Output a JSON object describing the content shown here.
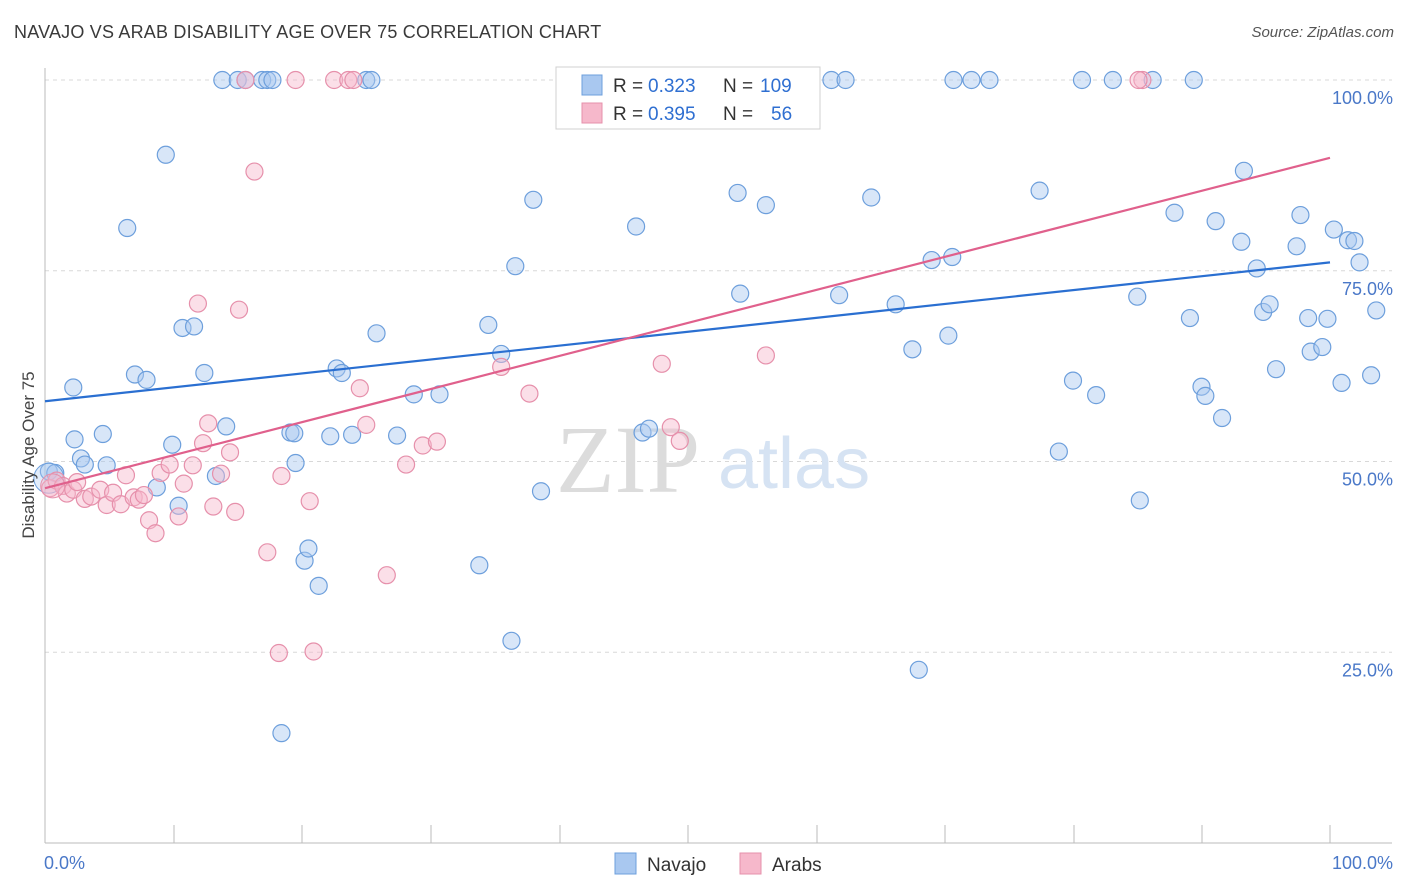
{
  "header": {
    "title": "NAVAJO VS ARAB DISABILITY AGE OVER 75 CORRELATION CHART",
    "source": "Source: ZipAtlas.com"
  },
  "watermark": {
    "zip": "ZIP",
    "atlas": "atlas"
  },
  "colors": {
    "navajo_fill": "#a9c8f0",
    "navajo_stroke": "#6d9fdc",
    "navajo_line": "#2a6fd1",
    "arabs_fill": "#f6b8cb",
    "arabs_stroke": "#e690ab",
    "arabs_line": "#e0608c",
    "tick_label": "#4a78c8",
    "grid": "#d8d8d8"
  },
  "legend": {
    "rows": [
      {
        "r_label": "R =",
        "r_value": "0.323",
        "n_label": "N =",
        "n_value": "109"
      },
      {
        "r_label": "R =",
        "r_value": "0.395",
        "n_label": "N =",
        "n_value": "56"
      }
    ]
  },
  "chart_data": {
    "type": "scatter",
    "title": "NAVAJO VS ARAB DISABILITY AGE OVER 75 CORRELATION CHART",
    "xlabel": "",
    "ylabel": "Disability Age Over 75",
    "xlim": [
      0,
      100
    ],
    "ylim": [
      0,
      105
    ],
    "x_tick_labels": [
      "0.0%",
      "100.0%"
    ],
    "y_ticks": [
      25,
      50,
      75,
      100
    ],
    "y_tick_labels": [
      "25.0%",
      "50.0%",
      "75.0%",
      "100.0%"
    ],
    "grid": true,
    "legend_position": "top-center",
    "series": [
      {
        "name": "Navajo",
        "r": 0.323,
        "n": 109,
        "trend": {
          "x": [
            0,
            100
          ],
          "y": [
            57.9,
            76.1
          ]
        },
        "points": [
          [
            0.3,
            48.7
          ],
          [
            0.8,
            48.5
          ],
          [
            2.2,
            59.7
          ],
          [
            2.3,
            52.9
          ],
          [
            2.8,
            50.4
          ],
          [
            3.1,
            49.6
          ],
          [
            4.5,
            53.6
          ],
          [
            4.8,
            49.5
          ],
          [
            6.4,
            80.6
          ],
          [
            7.0,
            61.4
          ],
          [
            7.9,
            60.7
          ],
          [
            8.7,
            46.6
          ],
          [
            9.4,
            90.2
          ],
          [
            9.9,
            52.2
          ],
          [
            10.4,
            44.2
          ],
          [
            10.7,
            67.5
          ],
          [
            11.6,
            67.7
          ],
          [
            12.4,
            61.6
          ],
          [
            13.3,
            48.1
          ],
          [
            14.1,
            54.6
          ],
          [
            13.8,
            100
          ],
          [
            15.0,
            100
          ],
          [
            15.6,
            100
          ],
          [
            16.9,
            100
          ],
          [
            17.3,
            100
          ],
          [
            17.7,
            100
          ],
          [
            18.4,
            14.4
          ],
          [
            19.1,
            53.8
          ],
          [
            19.4,
            53.7
          ],
          [
            19.5,
            49.8
          ],
          [
            20.2,
            37.0
          ],
          [
            20.5,
            38.6
          ],
          [
            21.3,
            33.7
          ],
          [
            22.2,
            53.3
          ],
          [
            22.7,
            62.2
          ],
          [
            23.1,
            61.6
          ],
          [
            23.9,
            53.5
          ],
          [
            25.0,
            100
          ],
          [
            25.4,
            100
          ],
          [
            25.8,
            66.8
          ],
          [
            27.4,
            53.4
          ],
          [
            28.7,
            58.8
          ],
          [
            30.7,
            58.8
          ],
          [
            33.8,
            36.4
          ],
          [
            34.5,
            67.9
          ],
          [
            35.5,
            64.1
          ],
          [
            36.6,
            75.6
          ],
          [
            36.3,
            26.5
          ],
          [
            38.0,
            84.3
          ],
          [
            38.6,
            46.1
          ],
          [
            40.6,
            100
          ],
          [
            42.3,
            100
          ],
          [
            43.8,
            100
          ],
          [
            46.0,
            80.8
          ],
          [
            46.5,
            53.8
          ],
          [
            47.0,
            54.3
          ],
          [
            49.9,
            100
          ],
          [
            53.9,
            85.2
          ],
          [
            54.1,
            72.0
          ],
          [
            56.1,
            83.6
          ],
          [
            58.6,
            100
          ],
          [
            61.2,
            100
          ],
          [
            61.8,
            71.8
          ],
          [
            62.3,
            100
          ],
          [
            64.3,
            84.6
          ],
          [
            66.2,
            70.6
          ],
          [
            67.5,
            64.7
          ],
          [
            68.0,
            22.7
          ],
          [
            69.0,
            76.4
          ],
          [
            70.3,
            66.5
          ],
          [
            70.6,
            76.8
          ],
          [
            70.7,
            100
          ],
          [
            72.1,
            100
          ],
          [
            73.5,
            100
          ],
          [
            77.4,
            85.5
          ],
          [
            78.9,
            51.3
          ],
          [
            80.0,
            60.6
          ],
          [
            80.7,
            100
          ],
          [
            81.8,
            58.7
          ],
          [
            83.1,
            100
          ],
          [
            85.0,
            71.6
          ],
          [
            85.2,
            44.9
          ],
          [
            86.2,
            100
          ],
          [
            87.9,
            82.6
          ],
          [
            89.1,
            68.8
          ],
          [
            89.4,
            100
          ],
          [
            90.0,
            59.8
          ],
          [
            90.3,
            58.6
          ],
          [
            91.1,
            81.5
          ],
          [
            91.6,
            55.7
          ],
          [
            93.1,
            78.8
          ],
          [
            93.3,
            88.1
          ],
          [
            94.3,
            75.3
          ],
          [
            94.8,
            69.6
          ],
          [
            95.3,
            70.6
          ],
          [
            95.8,
            62.1
          ],
          [
            97.4,
            78.2
          ],
          [
            97.7,
            82.3
          ],
          [
            98.3,
            68.8
          ],
          [
            98.5,
            64.4
          ],
          [
            99.4,
            65.0
          ],
          [
            99.8,
            68.7
          ],
          [
            100.3,
            80.4
          ],
          [
            100.9,
            60.3
          ],
          [
            101.4,
            79.0
          ],
          [
            101.9,
            78.9
          ],
          [
            102.3,
            76.1
          ],
          [
            103.2,
            61.3
          ],
          [
            103.6,
            69.8
          ]
        ]
      },
      {
        "name": "Arabs",
        "r": 0.395,
        "n": 56,
        "trend": {
          "x": [
            0,
            100
          ],
          "y": [
            46.5,
            89.8
          ]
        },
        "points": [
          [
            0.4,
            46.5
          ],
          [
            0.9,
            47.5
          ],
          [
            1.4,
            46.8
          ],
          [
            1.7,
            45.8
          ],
          [
            2.2,
            46.3
          ],
          [
            2.5,
            47.3
          ],
          [
            3.1,
            45.1
          ],
          [
            3.6,
            45.4
          ],
          [
            4.3,
            46.3
          ],
          [
            4.8,
            44.3
          ],
          [
            5.3,
            45.9
          ],
          [
            5.9,
            44.4
          ],
          [
            6.3,
            48.2
          ],
          [
            6.9,
            45.3
          ],
          [
            7.3,
            45.0
          ],
          [
            7.7,
            45.6
          ],
          [
            8.1,
            42.3
          ],
          [
            8.6,
            40.6
          ],
          [
            9.0,
            48.5
          ],
          [
            9.7,
            49.6
          ],
          [
            10.4,
            42.8
          ],
          [
            10.8,
            47.1
          ],
          [
            11.5,
            49.5
          ],
          [
            11.9,
            70.7
          ],
          [
            12.3,
            52.4
          ],
          [
            12.7,
            55.0
          ],
          [
            13.1,
            44.1
          ],
          [
            13.7,
            48.4
          ],
          [
            14.4,
            51.2
          ],
          [
            14.8,
            43.4
          ],
          [
            15.1,
            69.9
          ],
          [
            15.6,
            100
          ],
          [
            16.3,
            88.0
          ],
          [
            17.3,
            38.1
          ],
          [
            18.2,
            24.9
          ],
          [
            18.4,
            48.1
          ],
          [
            19.5,
            100
          ],
          [
            20.6,
            44.8
          ],
          [
            20.9,
            25.1
          ],
          [
            22.5,
            100
          ],
          [
            23.6,
            100
          ],
          [
            24.0,
            100
          ],
          [
            24.5,
            59.6
          ],
          [
            25.0,
            54.8
          ],
          [
            26.6,
            35.1
          ],
          [
            28.1,
            49.6
          ],
          [
            29.4,
            52.1
          ],
          [
            30.5,
            52.6
          ],
          [
            35.5,
            62.4
          ],
          [
            37.7,
            58.9
          ],
          [
            48.0,
            62.8
          ],
          [
            48.7,
            54.5
          ],
          [
            49.4,
            52.7
          ],
          [
            56.1,
            63.9
          ],
          [
            85.4,
            100
          ],
          [
            85.1,
            100
          ]
        ]
      }
    ]
  },
  "bottom_legend": {
    "items": [
      "Navajo",
      "Arabs"
    ]
  }
}
